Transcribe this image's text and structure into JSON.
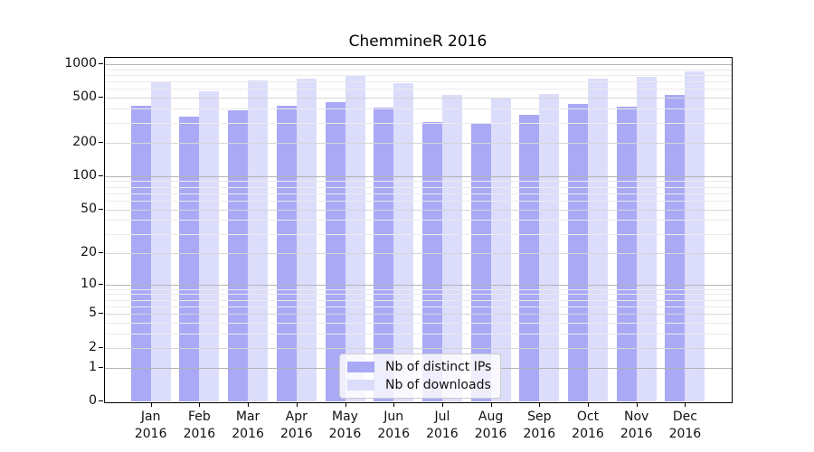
{
  "title": "ChemmineR 2016",
  "chart_data": {
    "type": "bar",
    "title": "ChemmineR 2016",
    "categories": [
      "Jan",
      "Feb",
      "Mar",
      "Apr",
      "May",
      "Jun",
      "Jul",
      "Aug",
      "Sep",
      "Oct",
      "Nov",
      "Dec"
    ],
    "year": "2016",
    "series": [
      {
        "name": "Nb of distinct IPs",
        "color": "#a9a9f6",
        "values": [
          425,
          340,
          385,
          425,
          455,
          410,
          305,
          300,
          355,
          440,
          420,
          530
        ]
      },
      {
        "name": "Nb of downloads",
        "color": "#dcdcfb",
        "values": [
          690,
          575,
          710,
          745,
          805,
          680,
          530,
          490,
          540,
          745,
          770,
          860
        ]
      }
    ],
    "xlabel": "",
    "ylabel": "",
    "y_scale": "log1p",
    "y_ticks": [
      0,
      1,
      2,
      5,
      10,
      20,
      50,
      100,
      200,
      500,
      1000
    ],
    "ylim": [
      0,
      1140
    ],
    "grid": "both",
    "legend_position": "lower-center"
  }
}
